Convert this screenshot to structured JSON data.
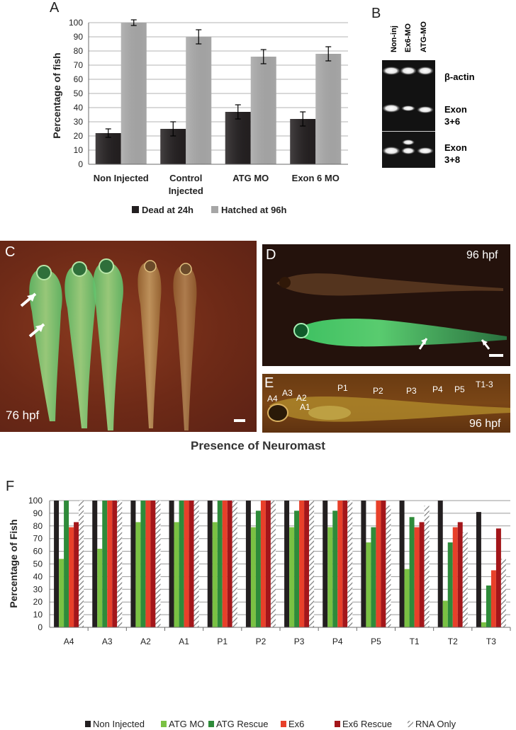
{
  "panels": {
    "a": "A",
    "b": "B",
    "c": "C",
    "d": "D",
    "e": "E",
    "f": "F"
  },
  "panel_b": {
    "lanes": [
      "Non-inj",
      "Ex6-MO",
      "ATG-MO"
    ],
    "bands": [
      "β-actin",
      "Exon 3+6",
      "Exon 3+8"
    ]
  },
  "panel_c": {
    "stage": "76 hpf"
  },
  "panel_d": {
    "stage": "96 hpf"
  },
  "panel_e": {
    "stage": "96 hpf",
    "neuromast_labels": [
      "A4",
      "A3",
      "A2",
      "A1",
      "P1",
      "P2",
      "P3",
      "P4",
      "P5",
      "T1-3"
    ]
  },
  "panel_f_title": "Presence of Neuromast",
  "chart_data": [
    {
      "type": "bar",
      "panel": "A",
      "categories": [
        "Non Injected",
        "Control Injected",
        "ATG MO",
        "Exon 6 MO"
      ],
      "series": [
        {
          "name": "Dead at 24h",
          "color": "#231f20",
          "values": [
            22,
            25,
            37,
            32
          ],
          "errors": [
            3,
            5,
            5,
            5
          ]
        },
        {
          "name": "Hatched at 96h",
          "color": "#a6a6a6",
          "values": [
            100,
            90,
            76,
            78
          ],
          "errors": [
            2,
            5,
            5,
            5
          ]
        }
      ],
      "ylabel": "Percentage of fish",
      "xlabel": "",
      "ylim": [
        0,
        100
      ],
      "yticks": [
        0,
        10,
        20,
        30,
        40,
        50,
        60,
        70,
        80,
        90,
        100
      ],
      "grid": true,
      "legend": "bottom"
    },
    {
      "type": "bar",
      "panel": "F",
      "categories": [
        "A4",
        "A3",
        "A2",
        "A1",
        "P1",
        "P2",
        "P3",
        "P4",
        "P5",
        "T1",
        "T2",
        "T3"
      ],
      "series": [
        {
          "name": "Non Injected",
          "color": "#231f20",
          "pattern": "solid",
          "values": [
            100,
            100,
            100,
            100,
            100,
            100,
            100,
            100,
            100,
            100,
            100,
            91
          ]
        },
        {
          "name": "ATG MO",
          "color": "#7ac143",
          "pattern": "solid",
          "values": [
            54,
            62,
            83,
            83,
            83,
            79,
            79,
            79,
            67,
            46,
            21,
            4
          ]
        },
        {
          "name": "ATG Rescue",
          "color": "#2e8b3a",
          "pattern": "solid",
          "values": [
            100,
            100,
            100,
            100,
            100,
            92,
            92,
            92,
            79,
            87,
            67,
            33
          ]
        },
        {
          "name": "Ex6",
          "color": "#e8402a",
          "pattern": "solid",
          "values": [
            79,
            100,
            100,
            100,
            100,
            100,
            100,
            100,
            100,
            79,
            79,
            45
          ]
        },
        {
          "name": "Ex6 Rescue",
          "color": "#a3161a",
          "pattern": "solid",
          "values": [
            83,
            100,
            100,
            100,
            100,
            100,
            100,
            100,
            100,
            83,
            83,
            78
          ]
        },
        {
          "name": "RNA Only",
          "color": "#9a9a9a",
          "pattern": "hatch",
          "values": [
            100,
            100,
            100,
            100,
            100,
            100,
            100,
            100,
            96,
            96,
            75,
            54
          ]
        }
      ],
      "ylabel": "Percentage of Fish",
      "xlabel": "",
      "ylim": [
        0,
        100
      ],
      "yticks": [
        0,
        10,
        20,
        30,
        40,
        50,
        60,
        70,
        80,
        90,
        100
      ],
      "grid": true,
      "legend": "bottom"
    }
  ]
}
